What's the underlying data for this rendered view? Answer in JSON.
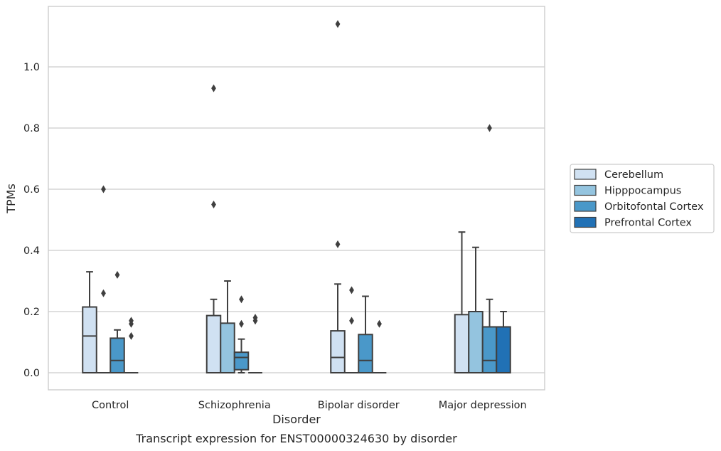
{
  "chart_data": {
    "type": "box",
    "caption": "Transcript expression for ENST00000324630 by disorder",
    "xlabel": "Disorder",
    "ylabel": "TPMs",
    "ylim": [
      -0.055,
      1.2
    ],
    "yticks": [
      0.0,
      0.2,
      0.4,
      0.6,
      0.8,
      1.0
    ],
    "ytick_labels": [
      "0.0",
      "0.2",
      "0.4",
      "0.6",
      "0.8",
      "1.0"
    ],
    "categories": [
      "Control",
      "Schizophrenia",
      "Bipolar disorder",
      "Major depression"
    ],
    "grid": "horizontal",
    "legend_position": "right",
    "series": [
      {
        "name": "Cerebellum",
        "color": "#d0e1f2",
        "boxes": [
          {
            "q1": 0.0,
            "median": 0.12,
            "q3": 0.215,
            "whisker_low": 0.0,
            "whisker_high": 0.33,
            "outliers": []
          },
          {
            "q1": 0.0,
            "median": 0.0,
            "q3": 0.187,
            "whisker_low": 0.0,
            "whisker_high": 0.24,
            "outliers": [
              0.55,
              0.93
            ]
          },
          {
            "q1": 0.0,
            "median": 0.05,
            "q3": 0.137,
            "whisker_low": 0.0,
            "whisker_high": 0.29,
            "outliers": [
              0.42,
              1.14
            ]
          },
          {
            "q1": 0.0,
            "median": 0.0,
            "q3": 0.19,
            "whisker_low": 0.0,
            "whisker_high": 0.46,
            "outliers": []
          }
        ]
      },
      {
        "name": "Hipppocampus",
        "color": "#94c4df",
        "boxes": [
          {
            "q1": 0.0,
            "median": 0.0,
            "q3": 0.0,
            "whisker_low": 0.0,
            "whisker_high": 0.0,
            "outliers": [
              0.26,
              0.6
            ]
          },
          {
            "q1": 0.0,
            "median": 0.0,
            "q3": 0.162,
            "whisker_low": 0.0,
            "whisker_high": 0.3,
            "outliers": []
          },
          {
            "q1": 0.0,
            "median": 0.0,
            "q3": 0.0,
            "whisker_low": 0.0,
            "whisker_high": 0.0,
            "outliers": [
              0.17,
              0.27
            ]
          },
          {
            "q1": 0.0,
            "median": 0.0,
            "q3": 0.2,
            "whisker_low": 0.0,
            "whisker_high": 0.41,
            "outliers": []
          }
        ]
      },
      {
        "name": "Orbitofontal Cortex",
        "color": "#4a98c9",
        "boxes": [
          {
            "q1": 0.0,
            "median": 0.04,
            "q3": 0.113,
            "whisker_low": 0.0,
            "whisker_high": 0.14,
            "outliers": [
              0.32
            ]
          },
          {
            "q1": 0.01,
            "median": 0.05,
            "q3": 0.067,
            "whisker_low": 0.0,
            "whisker_high": 0.11,
            "outliers": [
              0.16,
              0.24
            ]
          },
          {
            "q1": 0.0,
            "median": 0.04,
            "q3": 0.125,
            "whisker_low": 0.0,
            "whisker_high": 0.25,
            "outliers": []
          },
          {
            "q1": 0.0,
            "median": 0.04,
            "q3": 0.15,
            "whisker_low": 0.0,
            "whisker_high": 0.24,
            "outliers": [
              0.8
            ]
          }
        ]
      },
      {
        "name": "Prefrontal Cortex",
        "color": "#2171b5",
        "boxes": [
          {
            "q1": 0.0,
            "median": 0.0,
            "q3": 0.0,
            "whisker_low": 0.0,
            "whisker_high": 0.0,
            "outliers": [
              0.12,
              0.16,
              0.17
            ]
          },
          {
            "q1": 0.0,
            "median": 0.0,
            "q3": 0.0,
            "whisker_low": 0.0,
            "whisker_high": 0.0,
            "outliers": [
              0.17,
              0.18
            ]
          },
          {
            "q1": 0.0,
            "median": 0.0,
            "q3": 0.0,
            "whisker_low": 0.0,
            "whisker_high": 0.0,
            "outliers": [
              0.16
            ]
          },
          {
            "q1": 0.0,
            "median": 0.0,
            "q3": 0.15,
            "whisker_low": 0.0,
            "whisker_high": 0.2,
            "outliers": []
          }
        ]
      }
    ]
  }
}
